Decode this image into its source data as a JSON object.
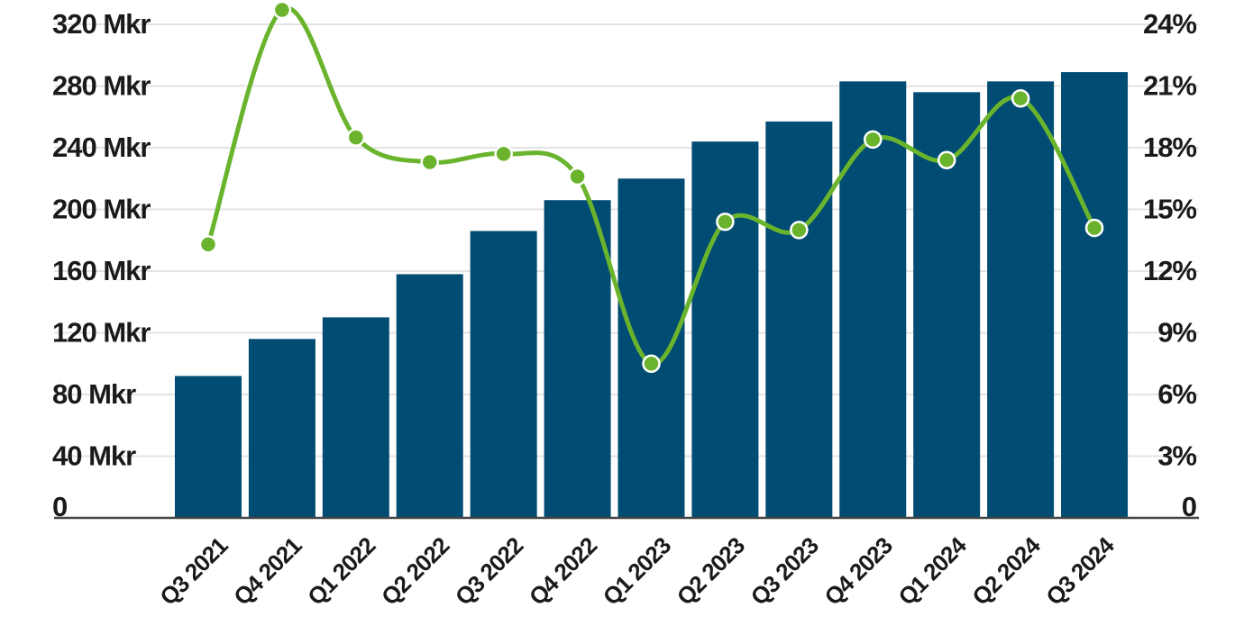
{
  "chart_data": {
    "type": "bar",
    "title": "",
    "xlabel": "",
    "ylabel": "",
    "categories": [
      "Q3 2021",
      "Q4 2021",
      "Q1 2022",
      "Q2 2022",
      "Q3 2022",
      "Q4 2022",
      "Q1 2023",
      "Q2 2023",
      "Q3 2023",
      "Q4 2023",
      "Q1 2024",
      "Q2 2024",
      "Q3 2024"
    ],
    "series": [
      {
        "type": "bar",
        "axis": "left",
        "values": [
          92,
          116,
          130,
          158,
          186,
          206,
          220,
          244,
          257,
          283,
          276,
          283,
          289
        ]
      },
      {
        "type": "line",
        "axis": "right",
        "values": [
          13.3,
          24.7,
          18.5,
          17.3,
          17.7,
          16.6,
          7.5,
          14.4,
          14.0,
          18.4,
          17.4,
          20.4,
          14.1
        ]
      }
    ],
    "ylim_left": [
      0,
      320
    ],
    "ylim_right": [
      0,
      24
    ],
    "left_ticks": [
      "0",
      "40 Mkr",
      "80 Mkr",
      "120 Mkr",
      "160 Mkr",
      "200 Mkr",
      "240 Mkr",
      "280 Mkr",
      "320 Mkr"
    ],
    "right_ticks": [
      "0",
      "3%",
      "6%",
      "9%",
      "12%",
      "15%",
      "18%",
      "21%",
      "24%"
    ],
    "grid": true,
    "legend": "none"
  },
  "colors": {
    "bar": "#004c72",
    "line": "#6ab42d",
    "grid": "#e3e3e3",
    "baseline": "#444444",
    "text": "#1a1a1a"
  }
}
